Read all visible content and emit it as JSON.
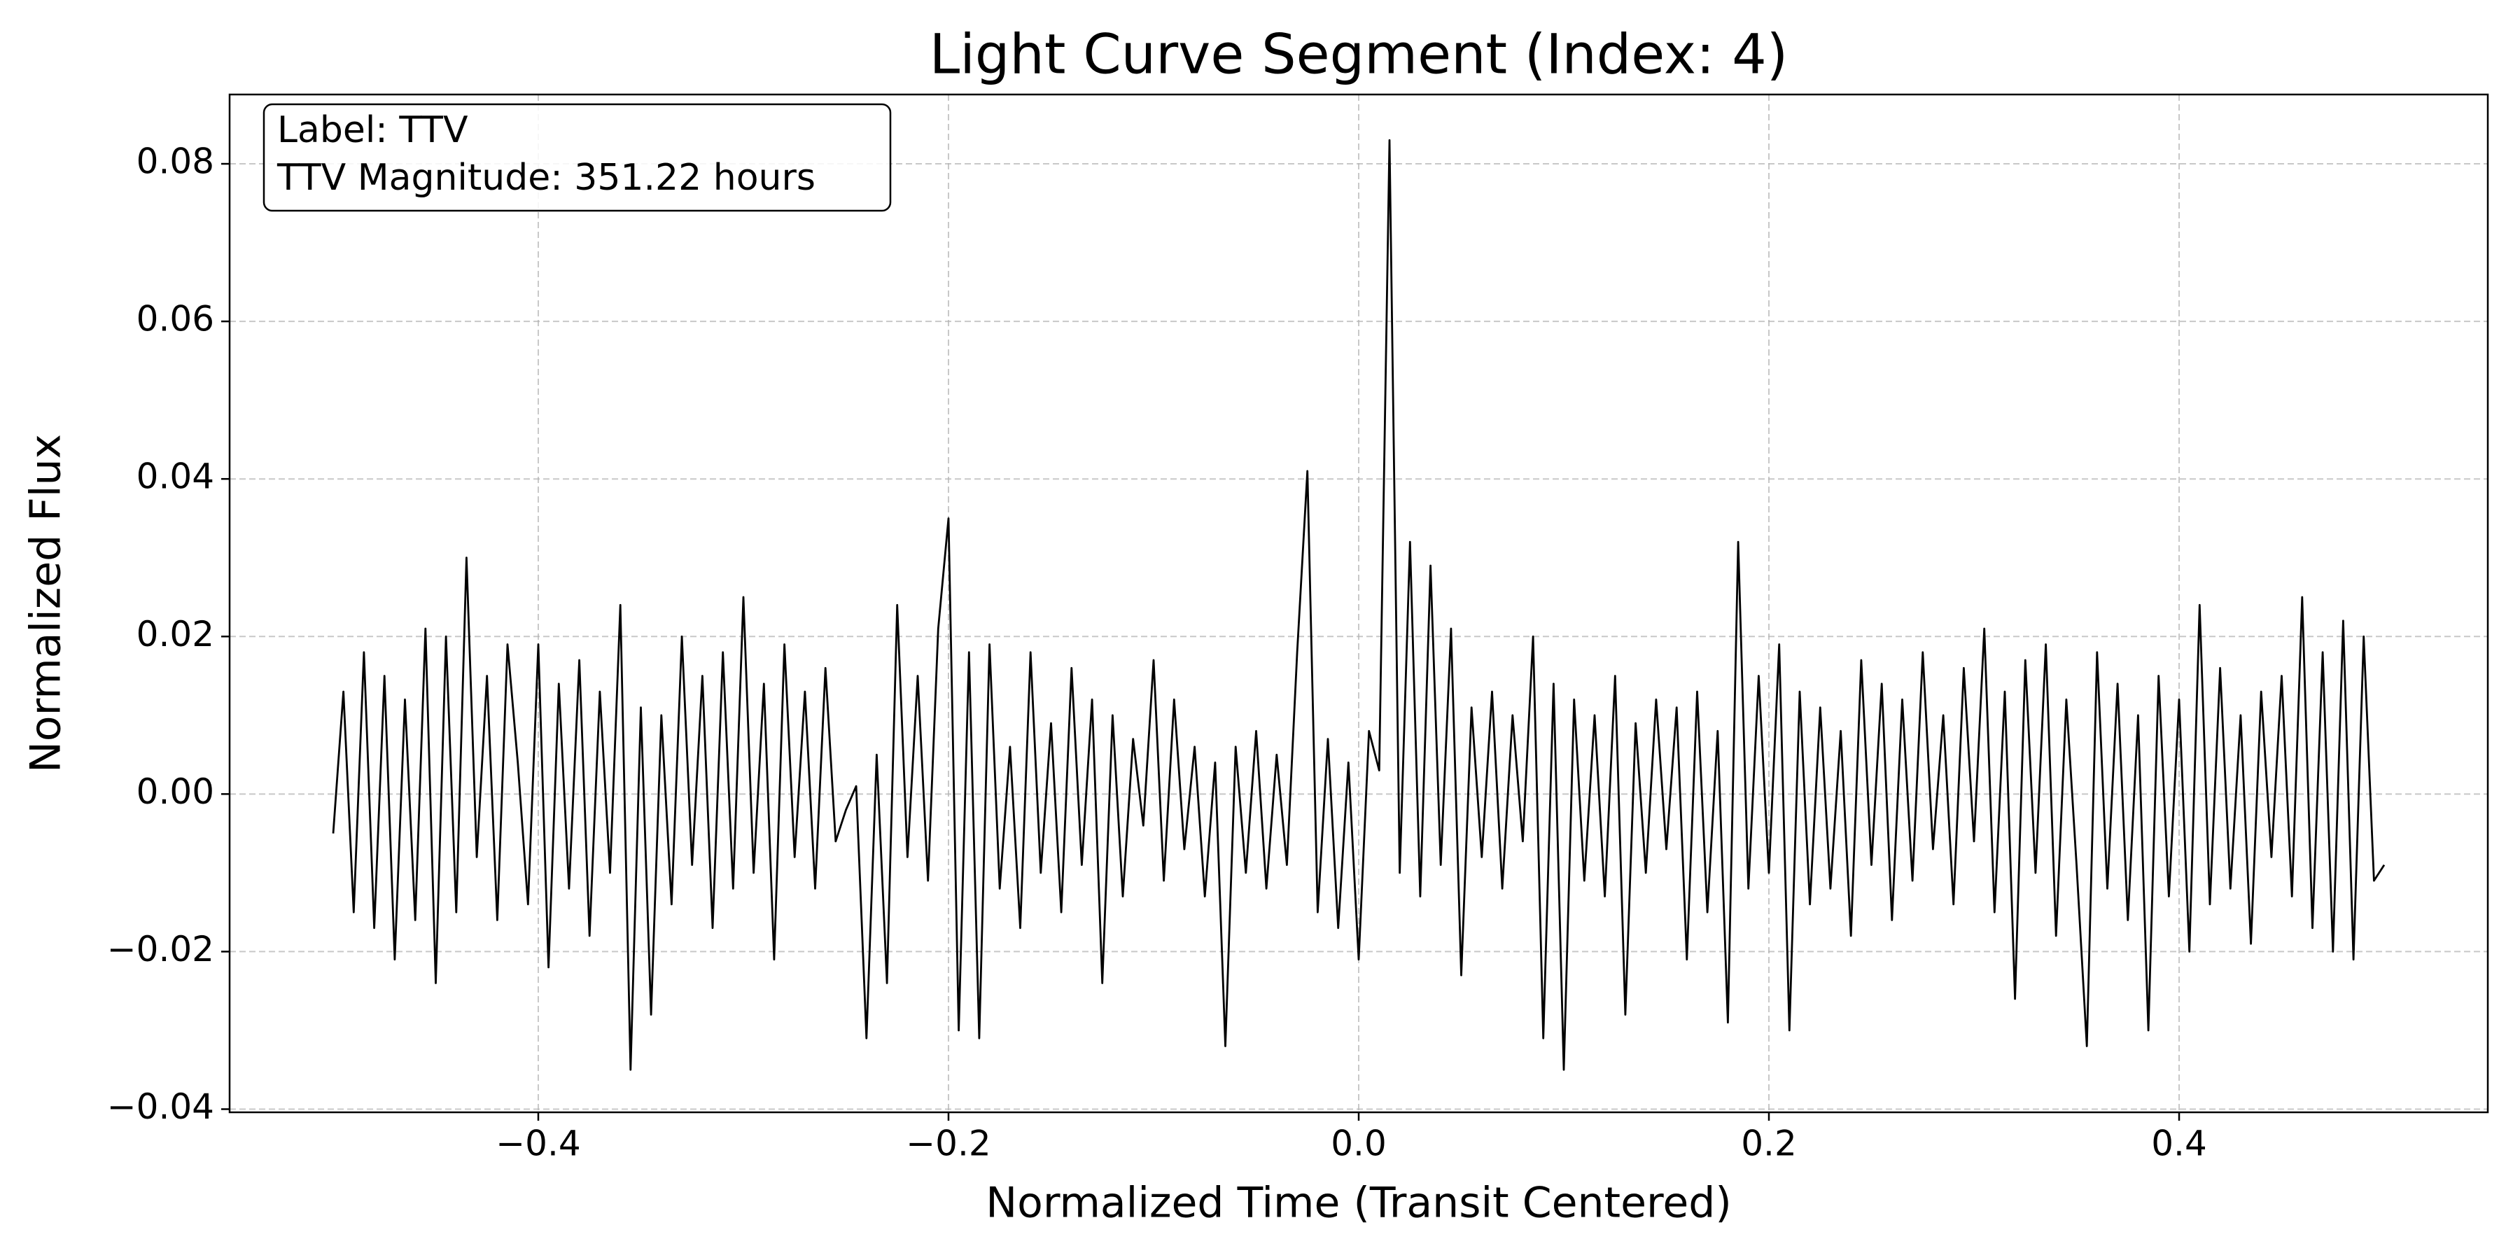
{
  "chart_data": {
    "type": "line",
    "title": "Light Curve Segment (Index: 4)",
    "x_label": "Normalized Time (Transit Centered)",
    "y_label": "Normalized Flux",
    "annotations": [
      "Label: TTV",
      "TTV Magnitude: 351.22 hours"
    ],
    "grid": true,
    "xlim": [
      -0.5505,
      0.5505
    ],
    "ylim": [
      -0.0404,
      0.0888
    ],
    "xticks": [
      {
        "value": -0.4,
        "label": "−0.4"
      },
      {
        "value": -0.2,
        "label": "−0.2"
      },
      {
        "value": 0.0,
        "label": "0.0"
      },
      0.2,
      0.4
    ],
    "yticks": [
      {
        "value": -0.04,
        "label": "−0.04"
      },
      {
        "value": -0.02,
        "label": "−0.02"
      },
      {
        "value": 0.0,
        "label": "0.00"
      },
      0.02,
      0.04,
      0.06,
      0.08
    ],
    "x": [
      -0.5,
      -0.495,
      -0.49,
      -0.485,
      -0.48,
      -0.475,
      -0.47,
      -0.465,
      -0.46,
      -0.455,
      -0.45,
      -0.445,
      -0.44,
      -0.435,
      -0.43,
      -0.425,
      -0.42,
      -0.415,
      -0.41,
      -0.405,
      -0.4,
      -0.395,
      -0.39,
      -0.385,
      -0.38,
      -0.375,
      -0.37,
      -0.365,
      -0.36,
      -0.355,
      -0.35,
      -0.345,
      -0.34,
      -0.335,
      -0.33,
      -0.325,
      -0.32,
      -0.315,
      -0.31,
      -0.305,
      -0.3,
      -0.295,
      -0.29,
      -0.285,
      -0.28,
      -0.275,
      -0.27,
      -0.265,
      -0.26,
      -0.255,
      -0.25,
      -0.245,
      -0.24,
      -0.235,
      -0.23,
      -0.225,
      -0.22,
      -0.215,
      -0.21,
      -0.205,
      -0.2,
      -0.195,
      -0.19,
      -0.185,
      -0.18,
      -0.175,
      -0.17,
      -0.165,
      -0.16,
      -0.155,
      -0.15,
      -0.145,
      -0.14,
      -0.135,
      -0.13,
      -0.125,
      -0.12,
      -0.115,
      -0.11,
      -0.105,
      -0.1,
      -0.095,
      -0.09,
      -0.085,
      -0.08,
      -0.075,
      -0.07,
      -0.065,
      -0.06,
      -0.055,
      -0.05,
      -0.045,
      -0.04,
      -0.035,
      -0.03,
      -0.025,
      -0.02,
      -0.015,
      -0.01,
      -0.005,
      0,
      0.005,
      0.01,
      0.015,
      0.02,
      0.025,
      0.03,
      0.035,
      0.04,
      0.045,
      0.05,
      0.055,
      0.06,
      0.065,
      0.07,
      0.075,
      0.08,
      0.085,
      0.09,
      0.095,
      0.1,
      0.105,
      0.11,
      0.115,
      0.12,
      0.125,
      0.13,
      0.135,
      0.14,
      0.145,
      0.15,
      0.155,
      0.16,
      0.165,
      0.17,
      0.175,
      0.18,
      0.185,
      0.19,
      0.195,
      0.2,
      0.205,
      0.21,
      0.215,
      0.22,
      0.225,
      0.23,
      0.235,
      0.24,
      0.245,
      0.25,
      0.255,
      0.26,
      0.265,
      0.27,
      0.275,
      0.28,
      0.285,
      0.29,
      0.295,
      0.3,
      0.305,
      0.31,
      0.315,
      0.32,
      0.325,
      0.33,
      0.335,
      0.34,
      0.345,
      0.35,
      0.355,
      0.36,
      0.365,
      0.37,
      0.375,
      0.38,
      0.385,
      0.39,
      0.395,
      0.4,
      0.405,
      0.41,
      0.415,
      0.42,
      0.425,
      0.43,
      0.435,
      0.44,
      0.445,
      0.45,
      0.455,
      0.46,
      0.465,
      0.47,
      0.475,
      0.48,
      0.485,
      0.49,
      0.495,
      0.5
    ],
    "series": [
      {
        "color": "#000000",
        "values": [
          -0.005,
          0.013,
          -0.015,
          0.018,
          -0.017,
          0.015,
          -0.021,
          0.012,
          -0.016,
          0.021,
          -0.024,
          0.02,
          -0.015,
          0.03,
          -0.008,
          0.015,
          -0.016,
          0.019,
          0.004,
          -0.014,
          0.019,
          -0.022,
          0.014,
          -0.012,
          0.017,
          -0.018,
          0.013,
          -0.01,
          0.024,
          -0.035,
          0.011,
          -0.028,
          0.01,
          -0.014,
          0.02,
          -0.009,
          0.015,
          -0.017,
          0.018,
          -0.012,
          0.025,
          -0.01,
          0.014,
          -0.021,
          0.019,
          -0.008,
          0.013,
          -0.012,
          0.016,
          -0.006,
          -0.002,
          0.001,
          -0.031,
          0.005,
          -0.024,
          0.024,
          -0.008,
          0.015,
          -0.011,
          0.021,
          0.035,
          -0.03,
          0.018,
          -0.031,
          0.019,
          -0.012,
          0.006,
          -0.017,
          0.018,
          -0.01,
          0.009,
          -0.015,
          0.016,
          -0.009,
          0.012,
          -0.024,
          0.01,
          -0.013,
          0.007,
          -0.004,
          0.017,
          -0.011,
          0.012,
          -0.007,
          0.006,
          -0.013,
          0.004,
          -0.032,
          0.006,
          -0.01,
          0.008,
          -0.012,
          0.005,
          -0.009,
          0.018,
          0.041,
          -0.015,
          0.007,
          -0.017,
          0.004,
          -0.021,
          0.008,
          0.003,
          0.083,
          -0.01,
          0.032,
          -0.013,
          0.029,
          -0.009,
          0.021,
          -0.023,
          0.011,
          -0.008,
          0.013,
          -0.012,
          0.01,
          -0.006,
          0.02,
          -0.031,
          0.014,
          -0.035,
          0.012,
          -0.011,
          0.01,
          -0.013,
          0.015,
          -0.028,
          0.009,
          -0.01,
          0.012,
          -0.007,
          0.011,
          -0.021,
          0.013,
          -0.015,
          0.008,
          -0.029,
          0.032,
          -0.012,
          0.015,
          -0.01,
          0.019,
          -0.03,
          0.013,
          -0.014,
          0.011,
          -0.012,
          0.008,
          -0.018,
          0.017,
          -0.009,
          0.014,
          -0.016,
          0.012,
          -0.011,
          0.018,
          -0.007,
          0.01,
          -0.014,
          0.016,
          -0.006,
          0.021,
          -0.015,
          0.013,
          -0.026,
          0.017,
          -0.01,
          0.019,
          -0.018,
          0.012,
          -0.009,
          -0.032,
          0.018,
          -0.012,
          0.014,
          -0.016,
          0.01,
          -0.03,
          0.015,
          -0.013,
          0.012,
          -0.02,
          0.024,
          -0.014,
          0.016,
          -0.012,
          0.01,
          -0.019,
          0.013,
          -0.008,
          0.015,
          -0.013,
          0.025,
          -0.017,
          0.018,
          -0.02,
          0.022,
          -0.021,
          0.02,
          -0.011,
          -0.009
        ]
      }
    ]
  }
}
